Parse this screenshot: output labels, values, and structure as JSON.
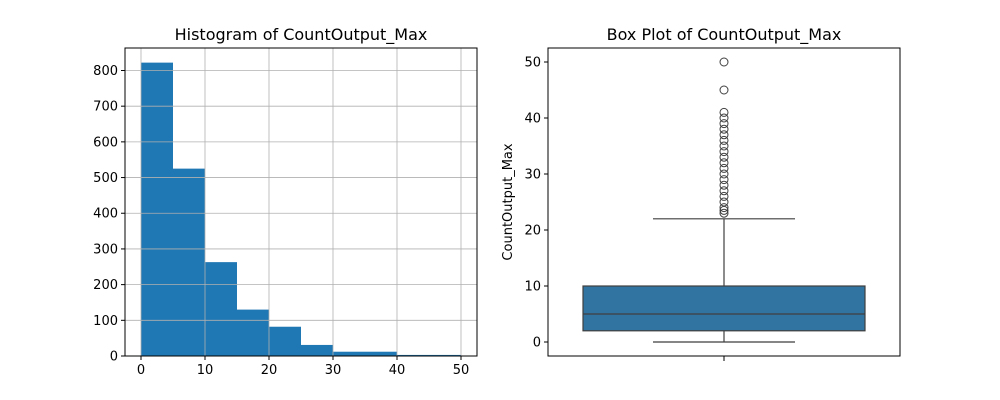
{
  "chart_data": [
    {
      "type": "bar",
      "title": "Histogram of CountOutput_Max",
      "xlabel": "",
      "ylabel": "",
      "bin_edges": [
        0,
        5,
        10,
        15,
        20,
        25,
        30,
        35,
        40,
        45,
        50
      ],
      "values": [
        822,
        525,
        263,
        130,
        82,
        31,
        12,
        12,
        3,
        3
      ],
      "xlim": [
        -2.5,
        52.5
      ],
      "ylim": [
        0,
        863
      ],
      "xticks": [
        0,
        10,
        20,
        30,
        40,
        50
      ],
      "yticks": [
        0,
        100,
        200,
        300,
        400,
        500,
        600,
        700,
        800
      ],
      "grid": true,
      "color": "#1f77b4"
    },
    {
      "type": "box",
      "title": "Box Plot of CountOutput_Max",
      "xlabel": "",
      "ylabel": "CountOutput_Max",
      "min": 0,
      "q1": 2,
      "median": 5,
      "q3": 10,
      "max_whisker": 22,
      "outliers": [
        23,
        23.5,
        24,
        25,
        26,
        27,
        28,
        29,
        30,
        31,
        32,
        33,
        34,
        35,
        36,
        37,
        38,
        39,
        40,
        41,
        45,
        50
      ],
      "ylim": [
        -2.5,
        52.5
      ],
      "yticks": [
        0,
        10,
        20,
        30,
        40,
        50
      ],
      "grid": false,
      "color": "#3274a1"
    }
  ]
}
